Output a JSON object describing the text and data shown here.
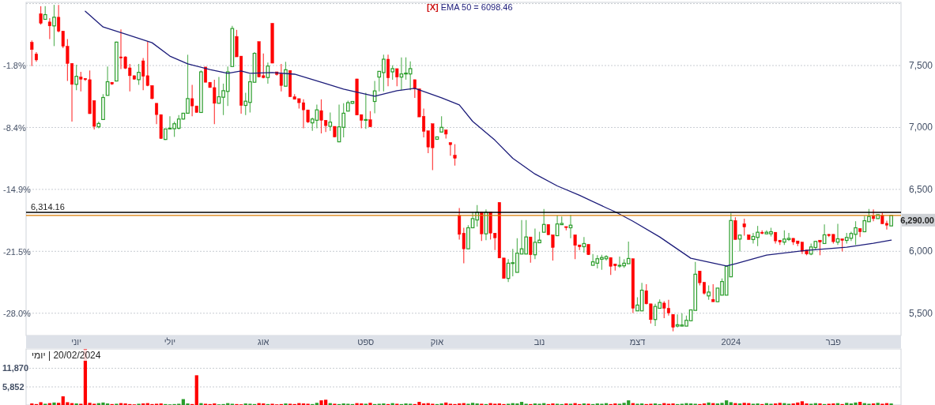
{
  "chart_data": [
    {
      "type": "candlestick",
      "categories": [
        null,
        null,
        null,
        null,
        null,
        null,
        null,
        null,
        null,
        null,
        "יוני",
        null,
        null,
        null,
        null,
        null,
        null,
        null,
        null,
        null,
        null,
        null,
        null,
        null,
        null,
        null,
        null,
        null,
        null,
        null,
        null,
        "יולי",
        null,
        null,
        null,
        null,
        null,
        null,
        null,
        null,
        null,
        null,
        null,
        null,
        null,
        null,
        null,
        null,
        null,
        null,
        null,
        null,
        "אוג",
        null,
        null,
        null,
        null,
        null,
        null,
        null,
        null,
        null,
        null,
        null,
        null,
        null,
        null,
        null,
        null,
        null,
        null,
        null,
        null,
        null,
        null,
        "ספט",
        null,
        null,
        null,
        null,
        null,
        null,
        null,
        null,
        null,
        null,
        null,
        null,
        null,
        null,
        null,
        "אוק",
        null,
        null,
        null,
        null,
        null,
        null,
        null,
        null,
        null,
        null,
        null,
        null,
        null,
        null,
        null,
        null,
        null,
        null,
        null,
        null,
        null,
        null,
        "נוב",
        null,
        null,
        null,
        null,
        null,
        null,
        null,
        null,
        null,
        null,
        null,
        null,
        null,
        null,
        null,
        null,
        null,
        null,
        null,
        null,
        null,
        "דצמ",
        null,
        null,
        null,
        null,
        null,
        null,
        null,
        null,
        null,
        null,
        null,
        null,
        null,
        null,
        null,
        null,
        null,
        null,
        null,
        null,
        "2024",
        null,
        null,
        null,
        null,
        null,
        null,
        null,
        null,
        null,
        null,
        null,
        null,
        null,
        null,
        null,
        null,
        null,
        null,
        null,
        null,
        null,
        null,
        "פבר",
        null,
        null,
        null,
        null,
        null,
        null,
        null,
        null,
        null,
        null,
        null,
        null,
        null
      ],
      "ohlc": [
        [
          7687,
          7703,
          7496,
          7629
        ],
        [
          7593,
          7608,
          7530,
          7545
        ],
        [
          7919,
          7979,
          7830,
          7841
        ],
        [
          7873,
          7979,
          7873,
          7911
        ],
        [
          7852,
          7883,
          7714,
          7820
        ],
        [
          7820,
          7990,
          7657,
          7890
        ],
        [
          7890,
          7990,
          7767,
          7778
        ],
        [
          7778,
          7778,
          7640,
          7655
        ],
        [
          7655,
          7714,
          7375,
          7517
        ],
        [
          7517,
          7517,
          7047,
          7348
        ],
        [
          7348,
          7507,
          7301,
          7413
        ],
        [
          7407,
          7449,
          7291,
          7390
        ],
        [
          7396,
          7396,
          7375,
          7386
        ],
        [
          7386,
          7460,
          7111,
          7111
        ],
        [
          7217,
          7217,
          6984,
          7009
        ],
        [
          7005,
          7047,
          6994,
          7032
        ],
        [
          7064,
          7269,
          7064,
          7242
        ],
        [
          7259,
          7492,
          7259,
          7369
        ],
        [
          7365,
          7365,
          7344,
          7350
        ],
        [
          7375,
          7693,
          7375,
          7689
        ],
        [
          7570,
          7792,
          7471,
          7560
        ],
        [
          7570,
          7575,
          7471,
          7477
        ],
        [
          7481,
          7513,
          7291,
          7418
        ],
        [
          7418,
          7418,
          7386,
          7390
        ],
        [
          7386,
          7513,
          7344,
          7445
        ],
        [
          7538,
          7560,
          7301,
          7413
        ],
        [
          7418,
          7693,
          7333,
          7339
        ],
        [
          7339,
          7339,
          7227,
          7233
        ],
        [
          7195,
          7195,
          7026,
          7104
        ],
        [
          7104,
          7104,
          6910,
          6910
        ],
        [
          6903,
          6988,
          6899,
          6988
        ],
        [
          6988,
          7090,
          6984,
          6994
        ],
        [
          6990,
          7047,
          6924,
          7030
        ],
        [
          6994,
          7100,
          6984,
          7068
        ],
        [
          7068,
          7115,
          7064,
          7115
        ],
        [
          7115,
          7587,
          7111,
          7233
        ],
        [
          7233,
          7344,
          7090,
          7174
        ],
        [
          7174,
          7174,
          7121,
          7121
        ],
        [
          7121,
          7460,
          7121,
          7449
        ],
        [
          7488,
          7488,
          7365,
          7365
        ],
        [
          7365,
          7365,
          7322,
          7322
        ],
        [
          7322,
          7386,
          7026,
          7195
        ],
        [
          7195,
          7407,
          7195,
          7248
        ],
        [
          7244,
          7354,
          7100,
          7297
        ],
        [
          7291,
          7492,
          7174,
          7449
        ],
        [
          7492,
          7820,
          7492,
          7799
        ],
        [
          7735,
          7788,
          7570,
          7570
        ],
        [
          7576,
          7576,
          7111,
          7178
        ],
        [
          7178,
          7280,
          7100,
          7212
        ],
        [
          7202,
          7428,
          7121,
          7369
        ],
        [
          7365,
          7608,
          7365,
          7598
        ],
        [
          7693,
          7693,
          7407,
          7407
        ],
        [
          7418,
          7598,
          7396,
          7403
        ],
        [
          7403,
          7524,
          7354,
          7496
        ],
        [
          7841,
          7841,
          7519,
          7519
        ],
        [
          7449,
          7449,
          7418,
          7428
        ],
        [
          7432,
          7513,
          7291,
          7339
        ],
        [
          7333,
          7530,
          7333,
          7466
        ],
        [
          7460,
          7460,
          7248,
          7248
        ],
        [
          7248,
          7269,
          7227,
          7227
        ],
        [
          7233,
          7233,
          7153,
          7200
        ],
        [
          7200,
          7227,
          6994,
          7142
        ],
        [
          7142,
          7142,
          7037,
          7043
        ],
        [
          7037,
          7079,
          6973,
          7068
        ],
        [
          7058,
          7185,
          6994,
          7142
        ],
        [
          7136,
          7227,
          6952,
          7058
        ],
        [
          7058,
          7058,
          6963,
          7015
        ],
        [
          7009,
          7121,
          6973,
          7043
        ],
        [
          7009,
          7009,
          6920,
          6924
        ],
        [
          6884,
          7185,
          6884,
          7005
        ],
        [
          7001,
          7195,
          6920,
          7115
        ],
        [
          7132,
          7217,
          7132,
          7200
        ],
        [
          7195,
          7212,
          7190,
          7210
        ],
        [
          7392,
          7392,
          7100,
          7100
        ],
        [
          7104,
          7104,
          6994,
          7058
        ],
        [
          7058,
          7280,
          6988,
          7064
        ],
        [
          7062,
          7132,
          7005,
          7005
        ],
        [
          7210,
          7375,
          7115,
          7295
        ],
        [
          7407,
          7453,
          7291,
          7453
        ],
        [
          7443,
          7587,
          7291,
          7551
        ],
        [
          7551,
          7587,
          7333,
          7401
        ],
        [
          7449,
          7502,
          7386,
          7475
        ],
        [
          7475,
          7475,
          7333,
          7407
        ],
        [
          7407,
          7566,
          7301,
          7432
        ],
        [
          7432,
          7566,
          7386,
          7439
        ],
        [
          7432,
          7534,
          7301,
          7475
        ],
        [
          7386,
          7386,
          7238,
          7312
        ],
        [
          7312,
          7312,
          7085,
          7085
        ],
        [
          7090,
          7153,
          6920,
          6969
        ],
        [
          6973,
          6973,
          6793,
          6842
        ],
        [
          7030,
          7030,
          6656,
          6836
        ],
        [
          6905,
          6924,
          6899,
          6924
        ],
        [
          6963,
          7090,
          6963,
          7001
        ],
        [
          6980,
          6980,
          6910,
          6946
        ],
        [
          6878,
          6878,
          6772,
          6861
        ],
        [
          6776,
          6865,
          6692,
          6751
        ],
        [
          6289,
          6349,
          6095,
          6137
        ],
        [
          6147,
          6190,
          5904,
          6020
        ],
        [
          6020,
          6211,
          6020,
          6190
        ],
        [
          6190,
          6317,
          6190,
          6264
        ],
        [
          6253,
          6374,
          6200,
          6317
        ],
        [
          6317,
          6317,
          6084,
          6141
        ],
        [
          6141,
          6338,
          6090,
          6317
        ],
        [
          6317,
          6317,
          6095,
          6147
        ],
        [
          6147,
          6147,
          6010,
          6109
        ],
        [
          6395,
          6395,
          5946,
          5946
        ],
        [
          5946,
          5946,
          5781,
          5781
        ],
        [
          5781,
          5936,
          5752,
          5904
        ],
        [
          5904,
          6020,
          5798,
          5908
        ],
        [
          5830,
          6105,
          5830,
          5985
        ],
        [
          5978,
          6253,
          5978,
          6020
        ],
        [
          5978,
          6253,
          5978,
          6116
        ],
        [
          6116,
          6116,
          5908,
          5972
        ],
        [
          5972,
          6183,
          5936,
          6073
        ],
        [
          6069,
          6158,
          6069,
          6090
        ],
        [
          6154,
          6342,
          6154,
          6217
        ],
        [
          6217,
          6217,
          6133,
          6133
        ],
        [
          6133,
          6133,
          5925,
          6031
        ],
        [
          6126,
          6289,
          6126,
          6221
        ],
        [
          6215,
          6281,
          6215,
          6225
        ],
        [
          6200,
          6200,
          6169,
          6192
        ],
        [
          6190,
          6296,
          6105,
          6211
        ],
        [
          6133,
          6133,
          5936,
          6048
        ],
        [
          6052,
          6052,
          6010,
          6037
        ],
        [
          6037,
          6116,
          5989,
          6063
        ],
        [
          6056,
          6056,
          5972,
          5972
        ],
        [
          5887,
          5978,
          5887,
          5915
        ],
        [
          5904,
          5968,
          5862,
          5940
        ],
        [
          5936,
          5972,
          5851,
          5950
        ],
        [
          5940,
          5968,
          5925,
          5957
        ],
        [
          5950,
          5950,
          5809,
          5879
        ],
        [
          5898,
          5898,
          5845,
          5883
        ],
        [
          5883,
          5957,
          5866,
          5887
        ],
        [
          5883,
          5936,
          5866,
          5904
        ],
        [
          5900,
          6078,
          5900,
          5942
        ],
        [
          5940,
          5940,
          5502,
          5540
        ],
        [
          5519,
          5629,
          5519,
          5566
        ],
        [
          5519,
          5745,
          5519,
          5686
        ],
        [
          5682,
          5735,
          5571,
          5576
        ],
        [
          5576,
          5576,
          5417,
          5449
        ],
        [
          5449,
          5576,
          5396,
          5555
        ],
        [
          5540,
          5612,
          5540,
          5587
        ],
        [
          5582,
          5597,
          5460,
          5540
        ],
        [
          5540,
          5608,
          5481,
          5502
        ],
        [
          5491,
          5491,
          5354,
          5386
        ],
        [
          5396,
          5491,
          5386,
          5407
        ],
        [
          5396,
          5500,
          5396,
          5405
        ],
        [
          5396,
          5481,
          5396,
          5443
        ],
        [
          5439,
          5527,
          5439,
          5527
        ],
        [
          5523,
          5915,
          5523,
          5815
        ],
        [
          5841,
          5841,
          5724,
          5746
        ],
        [
          5750,
          5750,
          5650,
          5661
        ],
        [
          5640,
          5724,
          5608,
          5671
        ],
        [
          5612,
          5735,
          5593,
          5593
        ],
        [
          5593,
          5703,
          5593,
          5703
        ],
        [
          5646,
          5781,
          5646,
          5756
        ],
        [
          5646,
          5879,
          5646,
          5879
        ],
        [
          5794,
          6306,
          5794,
          6249
        ],
        [
          6249,
          6275,
          6095,
          6095
        ],
        [
          6099,
          6131,
          5999,
          6131
        ],
        [
          6222,
          6264,
          6127,
          6196
        ],
        [
          6133,
          6133,
          6095,
          6095
        ],
        [
          6095,
          6148,
          6063,
          6120
        ],
        [
          6112,
          6205,
          6042,
          6154
        ],
        [
          6154,
          6169,
          6137,
          6144
        ],
        [
          6141,
          6169,
          6137,
          6154
        ],
        [
          6141,
          6190,
          6120,
          6158
        ],
        [
          6154,
          6154,
          6063,
          6084
        ],
        [
          6090,
          6090,
          6052,
          6074
        ],
        [
          6074,
          6169,
          6052,
          6099
        ],
        [
          6095,
          6148,
          6084,
          6105
        ],
        [
          6105,
          6105,
          6052,
          6074
        ],
        [
          6084,
          6084,
          6042,
          6063
        ],
        [
          6074,
          6074,
          5978,
          5999
        ],
        [
          6010,
          6010,
          5968,
          5978
        ],
        [
          5978,
          6063,
          5968,
          6035
        ],
        [
          6031,
          6084,
          6010,
          6080
        ],
        [
          6090,
          6090,
          5968,
          6074
        ],
        [
          6063,
          6217,
          6063,
          6133
        ],
        [
          6137,
          6137,
          6116,
          6127
        ],
        [
          6137,
          6137,
          6063,
          6078
        ],
        [
          6074,
          6222,
          6052,
          6101
        ],
        [
          6101,
          6101,
          5999,
          6088
        ],
        [
          6088,
          6148,
          6063,
          6112
        ],
        [
          6105,
          6158,
          6084,
          6144
        ],
        [
          6137,
          6243,
          6052,
          6190
        ],
        [
          6184,
          6184,
          6116,
          6158
        ],
        [
          6158,
          6285,
          6158,
          6247
        ],
        [
          6239,
          6342,
          6239,
          6281
        ],
        [
          6285,
          6338,
          6243,
          6264
        ],
        [
          6264,
          6296,
          6264,
          6296
        ],
        [
          6290,
          6311,
          6222,
          6222
        ],
        [
          6226,
          6247,
          6175,
          6211
        ],
        [
          6205,
          6290,
          6205,
          6290
        ]
      ],
      "colors": [
        "#ff0000",
        "#ff0000",
        "#ff0000",
        "#2a9d2a",
        "#ff0000",
        "#2a9d2a",
        "#ff0000",
        "#ff0000",
        "#ff0000",
        "#ff0000",
        "#2a9d2a",
        "#ff0000",
        "#ff0000",
        "#ff0000",
        "#ff0000",
        "#2a9d2a",
        "#2a9d2a",
        "#2a9d2a",
        "#ff0000",
        "#2a9d2a",
        "#ff0000",
        "#ff0000",
        "#ff0000",
        "#ff0000",
        "#2a9d2a",
        "#ff0000",
        "#ff0000",
        "#ff0000",
        "#ff0000",
        "#ff0000",
        "#2a9d2a",
        "#2a9d2a",
        "#2a9d2a",
        "#2a9d2a",
        "#2a9d2a",
        "#2a9d2a",
        "#ff0000",
        "#ff0000",
        "#2a9d2a",
        "#ff0000",
        "#ff0000",
        "#ff0000",
        "#2a9d2a",
        "#2a9d2a",
        "#2a9d2a",
        "#2a9d2a",
        "#ff0000",
        "#ff0000",
        "#2a9d2a",
        "#2a9d2a",
        "#2a9d2a",
        "#ff0000",
        "#ff0000",
        "#2a9d2a",
        "#ff0000",
        "#ff0000",
        "#ff0000",
        "#2a9d2a",
        "#ff0000",
        "#ff0000",
        "#ff0000",
        "#ff0000",
        "#ff0000",
        "#2a9d2a",
        "#2a9d2a",
        "#ff0000",
        "#ff0000",
        "#2a9d2a",
        "#ff0000",
        "#2a9d2a",
        "#2a9d2a",
        "#2a9d2a",
        "#2a9d2a",
        "#ff0000",
        "#ff0000",
        "#2a9d2a",
        "#ff0000",
        "#2a9d2a",
        "#2a9d2a",
        "#2a9d2a",
        "#ff0000",
        "#2a9d2a",
        "#ff0000",
        "#2a9d2a",
        "#2a9d2a",
        "#2a9d2a",
        "#ff0000",
        "#ff0000",
        "#ff0000",
        "#ff0000",
        "#ff0000",
        "#2a9d2a",
        "#2a9d2a",
        "#ff0000",
        "#ff0000",
        "#ff0000",
        "#ff0000",
        "#ff0000",
        "#2a9d2a",
        "#2a9d2a",
        "#2a9d2a",
        "#ff0000",
        "#2a9d2a",
        "#ff0000",
        "#ff0000",
        "#ff0000",
        "#ff0000",
        "#2a9d2a",
        "#2a9d2a",
        "#2a9d2a",
        "#2a9d2a",
        "#2a9d2a",
        "#ff0000",
        "#2a9d2a",
        "#2a9d2a",
        "#2a9d2a",
        "#ff0000",
        "#ff0000",
        "#2a9d2a",
        "#2a9d2a",
        "#ff0000",
        "#2a9d2a",
        "#ff0000",
        "#ff0000",
        "#2a9d2a",
        "#ff0000",
        "#2a9d2a",
        "#2a9d2a",
        "#2a9d2a",
        "#2a9d2a",
        "#ff0000",
        "#ff0000",
        "#2a9d2a",
        "#2a9d2a",
        "#2a9d2a",
        "#ff0000",
        "#2a9d2a",
        "#2a9d2a",
        "#ff0000",
        "#ff0000",
        "#2a9d2a",
        "#2a9d2a",
        "#ff0000",
        "#ff0000",
        "#ff0000",
        "#2a9d2a",
        "#2a9d2a",
        "#2a9d2a",
        "#2a9d2a",
        "#2a9d2a",
        "#ff0000",
        "#ff0000",
        "#2a9d2a",
        "#ff0000",
        "#2a9d2a",
        "#2a9d2a",
        "#2a9d2a",
        "#2a9d2a",
        "#ff0000",
        "#2a9d2a",
        "#ff0000",
        "#ff0000",
        "#2a9d2a",
        "#2a9d2a",
        "#ff0000",
        "#2a9d2a",
        "#2a9d2a",
        "#ff0000",
        "#ff0000",
        "#2a9d2a",
        "#2a9d2a",
        "#ff0000",
        "#ff0000",
        "#ff0000",
        "#ff0000",
        "#2a9d2a",
        "#2a9d2a",
        "#ff0000",
        "#2a9d2a",
        "#ff0000",
        "#ff0000",
        "#2a9d2a",
        "#ff0000",
        "#2a9d2a",
        "#2a9d2a",
        "#2a9d2a",
        "#ff0000",
        "#2a9d2a",
        "#2a9d2a",
        "#ff0000",
        "#2a9d2a",
        "#ff0000",
        "#ff0000",
        "#2a9d2a"
      ],
      "series": [
        {
          "type": "line",
          "name": "EMA 50 = 6098.46",
          "color": "#1c1c7a",
          "values": [
            null,
            null,
            null,
            null,
            null,
            null,
            null,
            null,
            null,
            null,
            null,
            null,
            7938,
            null,
            null,
            null,
            7811,
            null,
            null,
            null,
            null,
            7754,
            null,
            null,
            null,
            null,
            null,
            7684,
            null,
            null,
            null,
            7576,
            null,
            null,
            null,
            7513,
            null,
            null,
            null,
            null,
            7468,
            null,
            null,
            null,
            7437,
            null,
            null,
            7456,
            null,
            7437,
            null,
            null,
            null,
            null,
            7443,
            null,
            null,
            null,
            null,
            7430,
            null,
            null,
            null,
            null,
            null,
            null,
            7354,
            null,
            null,
            null,
            7310,
            null,
            null,
            null,
            null,
            null,
            null,
            7252,
            null,
            null,
            null,
            null,
            7297,
            null,
            null,
            null,
            7316,
            null,
            null,
            null,
            null,
            null,
            7240,
            null,
            null,
            null,
            7182,
            null,
            null,
            7049,
            null,
            null,
            null,
            null,
            6897,
            null,
            null,
            null,
            6751,
            null,
            null,
            null,
            null,
            6624,
            null,
            null,
            null,
            null,
            6528,
            null,
            null,
            null,
            null,
            6452,
            null,
            null,
            null,
            null,
            null,
            6351,
            null,
            6319,
            null,
            null,
            null,
            6243,
            null,
            null,
            null,
            null,
            null,
            6116,
            null,
            null,
            null,
            null,
            null,
            null,
            5944,
            null,
            null,
            null,
            null,
            null,
            null,
            null,
            5881,
            null,
            5900,
            null,
            null,
            null,
            null,
            null,
            null,
            5970,
            null,
            null,
            null,
            null,
            null,
            null,
            null,
            null,
            6008,
            null,
            null,
            null,
            null,
            null,
            null,
            null,
            null,
            6033,
            null,
            null,
            null,
            null,
            null,
            6065,
            null,
            null,
            null,
            6090
          ]
        }
      ],
      "ylim": [
        5320,
        8010
      ],
      "yticks": [
        {
          "value": 5500,
          "label": "5,500"
        },
        {
          "value": 6000,
          "label": "6,000"
        },
        {
          "value": 6500,
          "label": "6,500"
        },
        {
          "value": 7000,
          "label": "7,000"
        },
        {
          "value": 7500,
          "label": "7,500"
        },
        {
          "value": 8000,
          "label": null
        }
      ],
      "y2lim": [
        -30.35,
        4.87
      ],
      "y2ticks": [
        {
          "value": -28.0,
          "label": "-28.0%"
        },
        {
          "value": -21.5,
          "label": "-21.5%"
        },
        {
          "value": -14.9,
          "label": "-14.9%"
        },
        {
          "value": -8.4,
          "label": "-8.4%"
        },
        {
          "value": -1.8,
          "label": "-1.8%"
        }
      ],
      "grid": "y",
      "legend": "top",
      "ref_lines": [
        {
          "axis": "y",
          "value": 6314.16,
          "label": "6,314.16",
          "color": "#000000"
        },
        {
          "axis": "y",
          "value": 6290,
          "label": "6,290.00",
          "color": "#d97800"
        }
      ],
      "annotations": [
        "[X]"
      ]
    },
    {
      "type": "bar",
      "categories": [
        null,
        null,
        null,
        null,
        null,
        null,
        null,
        null,
        null,
        null,
        null,
        null,
        null,
        null,
        null,
        null,
        null,
        null,
        null,
        null,
        null,
        null,
        null,
        null,
        null,
        null,
        null,
        null,
        null,
        null,
        null,
        null,
        null,
        null,
        null,
        null,
        null,
        null,
        null,
        null,
        null,
        null,
        null,
        null,
        null,
        null,
        null,
        null,
        null,
        null,
        null,
        null,
        null,
        null,
        null,
        null,
        null,
        null,
        null,
        null,
        null,
        null,
        null,
        null,
        null,
        null,
        null,
        null,
        null,
        null,
        null,
        null,
        null,
        null,
        null,
        null,
        null,
        null,
        null,
        null,
        null,
        null,
        null,
        null,
        null,
        null,
        null,
        null,
        null,
        null,
        null,
        null,
        null,
        null,
        null,
        null,
        null,
        null,
        null,
        null,
        null,
        null,
        null,
        null,
        null,
        null,
        null,
        null,
        null,
        null,
        null,
        null,
        null,
        null,
        null,
        null,
        null,
        null,
        null,
        null,
        null,
        null,
        null,
        null,
        null,
        null,
        null,
        null,
        null,
        null,
        null,
        null,
        null,
        null,
        null,
        null,
        null,
        null,
        null,
        null,
        null,
        null,
        null,
        null,
        null,
        null,
        null,
        null,
        null,
        null,
        null,
        null,
        null,
        null,
        null,
        null,
        null,
        null,
        null,
        null,
        null,
        null,
        null,
        null,
        null,
        null,
        null,
        null,
        null,
        null,
        null,
        null,
        null,
        null,
        null,
        null,
        null,
        null,
        null,
        null,
        null,
        null,
        null,
        null,
        null,
        null,
        null,
        null,
        null,
        null,
        null,
        null,
        null,
        null
      ],
      "values": [
        500,
        300,
        900,
        400,
        600,
        800,
        700,
        2800,
        900,
        600,
        500,
        400,
        18000,
        700,
        400,
        600,
        800,
        500,
        300,
        400,
        600,
        500,
        300,
        200,
        400,
        500,
        600,
        300,
        400,
        500,
        300,
        200,
        300,
        400,
        1900,
        500,
        300,
        9600,
        600,
        400,
        300,
        500,
        200,
        300,
        600,
        400,
        300,
        200,
        500,
        400,
        300,
        600,
        500,
        300,
        400,
        200,
        300,
        500,
        400,
        300,
        600,
        500,
        400,
        300,
        700,
        1500,
        1700,
        600,
        400,
        300,
        500,
        400,
        300,
        600,
        500,
        400,
        700,
        300,
        400,
        500,
        300,
        600,
        400,
        300,
        500,
        400,
        300,
        1000,
        500,
        600,
        400,
        300,
        500,
        800,
        400,
        300,
        500,
        600,
        400,
        700,
        500,
        400,
        300,
        600,
        400,
        500,
        300,
        400,
        600,
        500,
        1000,
        400,
        300,
        500,
        400,
        600,
        300,
        500,
        400,
        300,
        500,
        400,
        600,
        300,
        500,
        400,
        300,
        500,
        400,
        600,
        300,
        500,
        400,
        700,
        1500,
        600,
        400,
        500,
        300,
        400,
        500,
        300,
        600,
        400,
        500,
        300,
        400,
        600,
        500,
        400,
        300,
        500,
        800,
        600,
        500,
        700,
        1500,
        900,
        600,
        500,
        700,
        600,
        400,
        500,
        300,
        600,
        400,
        500,
        700,
        600,
        400,
        500,
        800,
        1200,
        500,
        400,
        600,
        500,
        300,
        400,
        500,
        600,
        300,
        700,
        500,
        800,
        1000,
        600,
        400,
        500,
        700,
        400,
        600,
        500
      ],
      "colors": [
        "#ff0000",
        "#ff0000",
        "#ff0000",
        "#2a9d2a",
        "#ff0000",
        "#2a9d2a",
        "#ff0000",
        "#ff0000",
        "#ff0000",
        "#ff0000",
        "#2a9d2a",
        "#ff0000",
        "#ff0000",
        "#ff0000",
        "#ff0000",
        "#2a9d2a",
        "#2a9d2a",
        "#2a9d2a",
        "#ff0000",
        "#2a9d2a",
        "#ff0000",
        "#ff0000",
        "#ff0000",
        "#ff0000",
        "#2a9d2a",
        "#ff0000",
        "#ff0000",
        "#ff0000",
        "#ff0000",
        "#ff0000",
        "#2a9d2a",
        "#2a9d2a",
        "#2a9d2a",
        "#2a9d2a",
        "#2a9d2a",
        "#2a9d2a",
        "#ff0000",
        "#ff0000",
        "#2a9d2a",
        "#ff0000",
        "#ff0000",
        "#ff0000",
        "#2a9d2a",
        "#2a9d2a",
        "#2a9d2a",
        "#2a9d2a",
        "#ff0000",
        "#ff0000",
        "#2a9d2a",
        "#2a9d2a",
        "#2a9d2a",
        "#ff0000",
        "#ff0000",
        "#2a9d2a",
        "#ff0000",
        "#ff0000",
        "#ff0000",
        "#2a9d2a",
        "#ff0000",
        "#ff0000",
        "#ff0000",
        "#ff0000",
        "#ff0000",
        "#2a9d2a",
        "#2a9d2a",
        "#ff0000",
        "#ff0000",
        "#2a9d2a",
        "#ff0000",
        "#2a9d2a",
        "#2a9d2a",
        "#2a9d2a",
        "#2a9d2a",
        "#ff0000",
        "#ff0000",
        "#2a9d2a",
        "#ff0000",
        "#2a9d2a",
        "#2a9d2a",
        "#2a9d2a",
        "#ff0000",
        "#2a9d2a",
        "#ff0000",
        "#2a9d2a",
        "#2a9d2a",
        "#2a9d2a",
        "#ff0000",
        "#ff0000",
        "#ff0000",
        "#ff0000",
        "#ff0000",
        "#2a9d2a",
        "#2a9d2a",
        "#ff0000",
        "#ff0000",
        "#ff0000",
        "#ff0000",
        "#ff0000",
        "#2a9d2a",
        "#2a9d2a",
        "#2a9d2a",
        "#ff0000",
        "#2a9d2a",
        "#ff0000",
        "#ff0000",
        "#ff0000",
        "#ff0000",
        "#2a9d2a",
        "#2a9d2a",
        "#2a9d2a",
        "#2a9d2a",
        "#2a9d2a",
        "#ff0000",
        "#2a9d2a",
        "#2a9d2a",
        "#2a9d2a",
        "#ff0000",
        "#ff0000",
        "#2a9d2a",
        "#2a9d2a",
        "#ff0000",
        "#2a9d2a",
        "#ff0000",
        "#ff0000",
        "#2a9d2a",
        "#ff0000",
        "#2a9d2a",
        "#2a9d2a",
        "#2a9d2a",
        "#2a9d2a",
        "#ff0000",
        "#ff0000",
        "#2a9d2a",
        "#2a9d2a",
        "#2a9d2a",
        "#ff0000",
        "#2a9d2a",
        "#2a9d2a",
        "#ff0000",
        "#ff0000",
        "#2a9d2a",
        "#2a9d2a",
        "#ff0000",
        "#ff0000",
        "#ff0000",
        "#2a9d2a",
        "#2a9d2a",
        "#2a9d2a",
        "#2a9d2a",
        "#2a9d2a",
        "#ff0000",
        "#ff0000",
        "#2a9d2a",
        "#ff0000",
        "#2a9d2a",
        "#2a9d2a",
        "#2a9d2a",
        "#2a9d2a",
        "#ff0000",
        "#2a9d2a",
        "#ff0000",
        "#ff0000",
        "#2a9d2a",
        "#2a9d2a",
        "#ff0000",
        "#2a9d2a",
        "#2a9d2a",
        "#ff0000",
        "#ff0000",
        "#2a9d2a",
        "#2a9d2a",
        "#ff0000",
        "#ff0000",
        "#ff0000",
        "#ff0000",
        "#2a9d2a",
        "#2a9d2a",
        "#ff0000",
        "#2a9d2a",
        "#ff0000",
        "#ff0000",
        "#2a9d2a",
        "#ff0000",
        "#2a9d2a",
        "#2a9d2a",
        "#2a9d2a",
        "#ff0000",
        "#2a9d2a",
        "#2a9d2a",
        "#ff0000",
        "#2a9d2a",
        "#ff0000",
        "#ff0000",
        "#2a9d2a"
      ],
      "ylim": [
        0,
        18100
      ],
      "yticks": [
        {
          "value": 5852,
          "label": "5,852"
        },
        {
          "value": 11870,
          "label": "11,870"
        }
      ],
      "grid": "y",
      "tick_labels": "y",
      "annotations": [
        "יומי | 20/02/2024"
      ]
    }
  ]
}
